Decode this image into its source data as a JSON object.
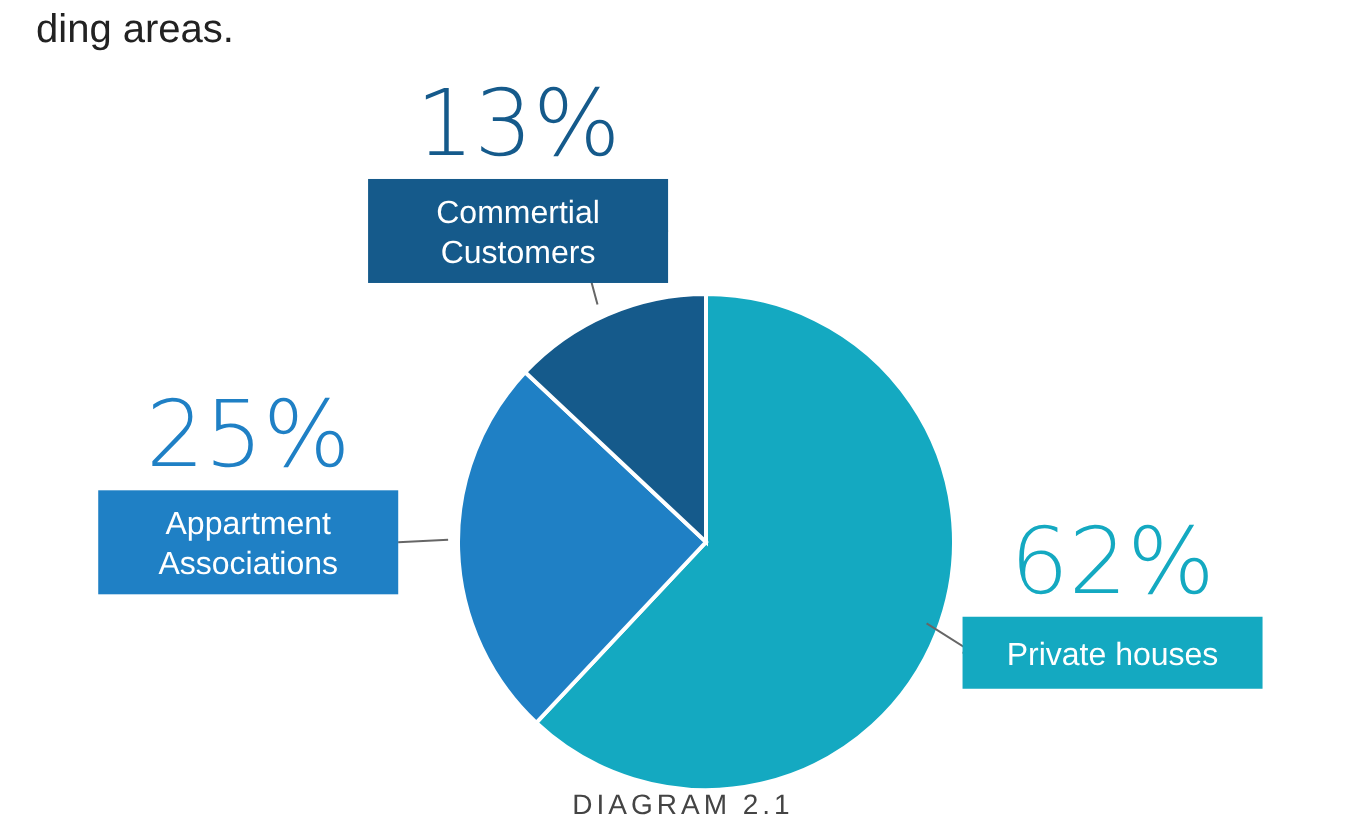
{
  "chart_data": {
    "type": "pie",
    "categories": [
      "Private houses",
      "Appartment Associations",
      "Commertial Customers"
    ],
    "values": [
      62,
      25,
      13
    ],
    "colors": [
      "#14a9c1",
      "#1f80c5",
      "#155a8b"
    ],
    "value_labels": [
      "62%",
      "25%",
      "13%"
    ],
    "annotations": [
      "ding areas.",
      "DIAGRAM 2.1"
    ]
  }
}
